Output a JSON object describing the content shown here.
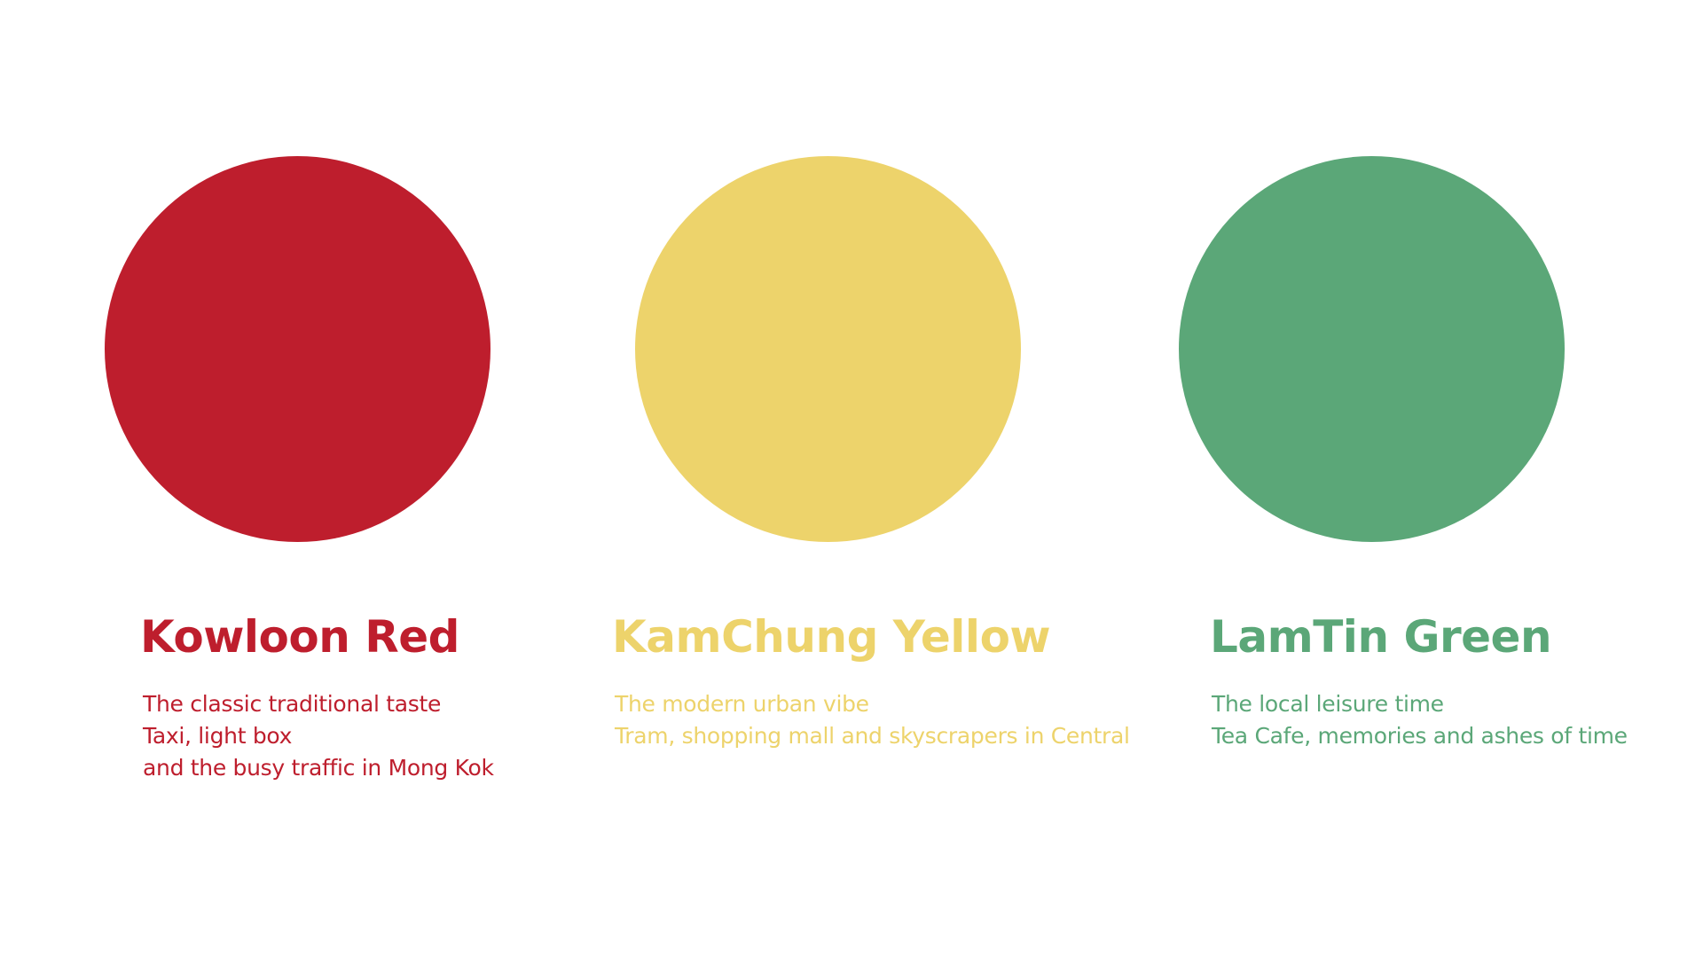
{
  "palette": [
    {
      "id": "red",
      "color": "#be1e2d",
      "title": "Kowloon Red",
      "lines": [
        "The classic traditional taste",
        "Taxi, light box",
        "and the busy traffic in Mong Kok"
      ]
    },
    {
      "id": "yellow",
      "color": "#edd36b",
      "title": "KamChung Yellow",
      "lines": [
        "The modern urban vibe",
        "Tram, shopping mall and skyscrapers in Central"
      ]
    },
    {
      "id": "green",
      "color": "#5ba778",
      "title": "LamTin Green",
      "lines": [
        "The local leisure time",
        "Tea Cafe, memories and ashes of time"
      ]
    }
  ]
}
